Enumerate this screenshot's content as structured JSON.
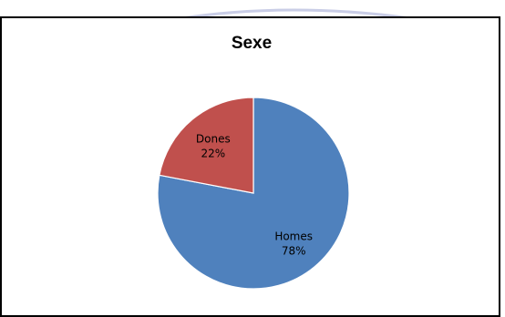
{
  "chart_data": {
    "type": "pie",
    "title": "Sexe",
    "slices": [
      {
        "label": "Homes",
        "value": 78,
        "value_label": "78%",
        "color": "#4F81BD"
      },
      {
        "label": "Dones",
        "value": 22,
        "value_label": "22%",
        "color": "#C0504D"
      }
    ],
    "start_angle_deg": 0,
    "direction": "clockwise",
    "legend": "none"
  }
}
